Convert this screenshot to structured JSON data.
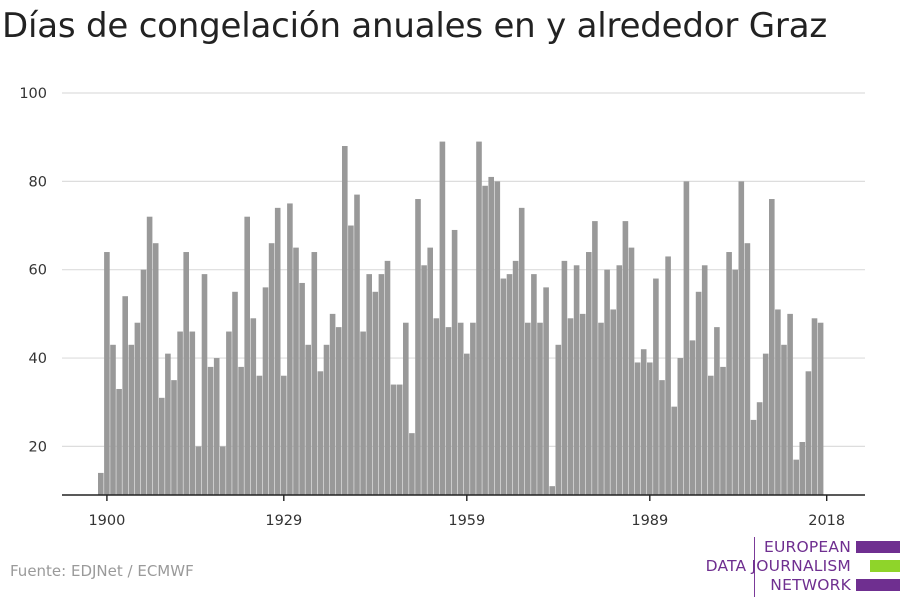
{
  "chart_data": {
    "type": "bar",
    "title": "Días de congelación anuales en y alrededor Graz",
    "x_start": 1899,
    "values": [
      14,
      64,
      43,
      33,
      54,
      43,
      48,
      60,
      72,
      66,
      31,
      41,
      35,
      46,
      64,
      46,
      20,
      59,
      38,
      40,
      20,
      46,
      55,
      38,
      72,
      49,
      36,
      56,
      66,
      74,
      36,
      75,
      65,
      57,
      43,
      64,
      37,
      43,
      50,
      47,
      88,
      70,
      77,
      46,
      59,
      55,
      59,
      62,
      34,
      34,
      48,
      23,
      76,
      61,
      65,
      49,
      89,
      47,
      69,
      48,
      41,
      48,
      89,
      79,
      81,
      80,
      58,
      59,
      62,
      74,
      48,
      59,
      48,
      56,
      11,
      43,
      62,
      49,
      61,
      50,
      64,
      71,
      48,
      60,
      51,
      61,
      71,
      65,
      39,
      42,
      39,
      58,
      35,
      63,
      29,
      40,
      80,
      44,
      55,
      61,
      36,
      47,
      38,
      64,
      60,
      80,
      66,
      26,
      30,
      41,
      76,
      51,
      43,
      50,
      17,
      21,
      37,
      49,
      48
    ],
    "x_ticks": [
      "1900",
      "1929",
      "1959",
      "1989",
      "2018"
    ],
    "y_ticks": [
      "20",
      "40",
      "60",
      "80",
      "100"
    ],
    "ylim": [
      9,
      100
    ],
    "xlabel": "",
    "ylabel": "",
    "grid": true,
    "bar_color": "#999999",
    "grid_color": "#dddddd"
  },
  "source": "Fuente: EDJNet / ECMWF",
  "logo": {
    "line1": "EUROPEAN",
    "line2": "DATA JOURNALISM",
    "line3": "NETWORK",
    "purple": "#6f2f90",
    "green": "#8fd42a"
  }
}
